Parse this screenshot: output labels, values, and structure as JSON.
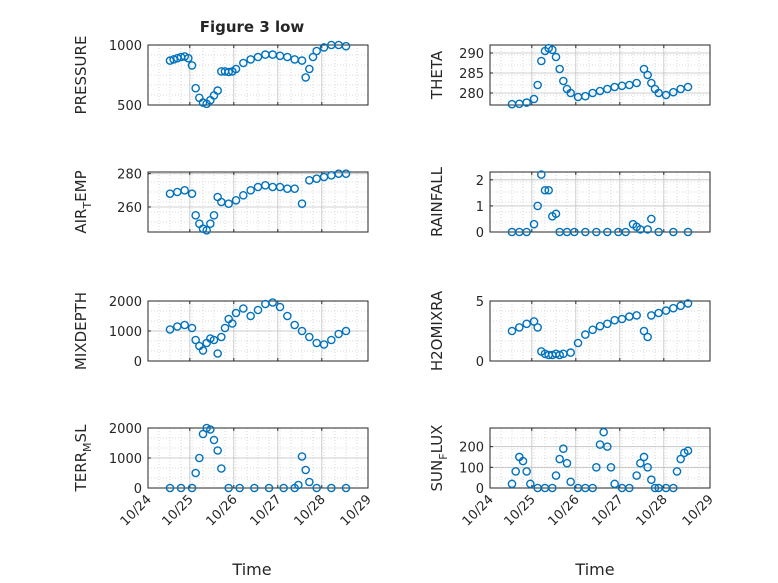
{
  "title": "Figure 3 low",
  "xlabel": "Time",
  "x_ticks": [
    "10/24",
    "10/25",
    "10/26",
    "10/27",
    "10/28",
    "10/29"
  ],
  "marker_color": "#0072BD",
  "chart_data": [
    {
      "type": "scatter",
      "ylabel": "PRESSURE",
      "ylim": [
        500,
        1000
      ],
      "yticks": [
        500,
        1000
      ],
      "x": [
        "10/24 12:00",
        "10/24 14:00",
        "10/24 16:00",
        "10/24 18:00",
        "10/24 20:00",
        "10/24 22:00",
        "10/25 00:00",
        "10/25 02:00",
        "10/25 04:00",
        "10/25 06:00",
        "10/25 08:00",
        "10/25 10:00",
        "10/25 12:00",
        "10/25 14:00",
        "10/25 16:00",
        "10/25 18:00",
        "10/25 20:00",
        "10/25 22:00",
        "10/26 00:00",
        "10/26 04:00",
        "10/26 08:00",
        "10/26 12:00",
        "10/26 16:00",
        "10/26 20:00",
        "10/27 00:00",
        "10/27 04:00",
        "10/27 08:00",
        "10/27 12:00",
        "10/27 14:00",
        "10/27 16:00",
        "10/27 18:00",
        "10/27 20:00",
        "10/28 00:00",
        "10/28 04:00",
        "10/28 08:00",
        "10/28 12:00"
      ],
      "values": [
        870,
        880,
        890,
        900,
        905,
        890,
        830,
        640,
        560,
        520,
        510,
        540,
        580,
        620,
        780,
        780,
        775,
        780,
        800,
        850,
        880,
        900,
        920,
        920,
        910,
        900,
        880,
        870,
        730,
        800,
        900,
        950,
        980,
        1000,
        1000,
        990
      ]
    },
    {
      "type": "scatter",
      "ylabel": "THETA",
      "ylim": [
        277,
        292
      ],
      "yticks": [
        280,
        285,
        290
      ],
      "x": [
        "10/24 12:00",
        "10/24 16:00",
        "10/24 20:00",
        "10/25 00:00",
        "10/25 02:00",
        "10/25 04:00",
        "10/25 06:00",
        "10/25 08:00",
        "10/25 10:00",
        "10/25 12:00",
        "10/25 14:00",
        "10/25 16:00",
        "10/25 18:00",
        "10/25 20:00",
        "10/26 00:00",
        "10/26 04:00",
        "10/26 08:00",
        "10/26 12:00",
        "10/26 16:00",
        "10/26 20:00",
        "10/27 00:00",
        "10/27 04:00",
        "10/27 08:00",
        "10/27 12:00",
        "10/27 14:00",
        "10/27 16:00",
        "10/27 18:00",
        "10/27 20:00",
        "10/28 00:00",
        "10/28 04:00",
        "10/28 08:00",
        "10/28 12:00"
      ],
      "values": [
        277.2,
        277.3,
        277.6,
        278.5,
        282,
        288,
        290.5,
        291.2,
        290.8,
        289,
        286,
        283,
        281,
        280,
        279,
        279.2,
        280,
        280.5,
        281,
        281.5,
        281.8,
        282,
        282.5,
        286,
        284.5,
        282.5,
        281,
        280,
        279.5,
        280.2,
        281,
        281.5
      ]
    },
    {
      "type": "scatter",
      "ylabel": "AIR_TEMP",
      "ylim": [
        245,
        281
      ],
      "yticks": [
        260,
        280
      ],
      "x": [
        "10/24 12:00",
        "10/24 16:00",
        "10/24 20:00",
        "10/25 00:00",
        "10/25 02:00",
        "10/25 04:00",
        "10/25 06:00",
        "10/25 08:00",
        "10/25 10:00",
        "10/25 12:00",
        "10/25 14:00",
        "10/25 16:00",
        "10/25 20:00",
        "10/26 00:00",
        "10/26 04:00",
        "10/26 08:00",
        "10/26 12:00",
        "10/26 16:00",
        "10/26 20:00",
        "10/27 00:00",
        "10/27 04:00",
        "10/27 08:00",
        "10/27 12:00",
        "10/27 16:00",
        "10/27 20:00",
        "10/28 00:00",
        "10/28 04:00",
        "10/28 08:00",
        "10/28 12:00"
      ],
      "values": [
        268,
        269,
        270,
        268,
        255,
        250,
        247,
        246,
        250,
        255,
        266,
        263,
        262,
        264,
        267,
        270,
        272,
        273,
        272,
        272,
        271,
        271,
        262,
        276,
        277,
        278,
        279,
        280,
        280
      ]
    },
    {
      "type": "scatter",
      "ylabel": "RAINFALL",
      "ylim": [
        0,
        2.3
      ],
      "yticks": [
        0,
        1,
        2
      ],
      "x": [
        "10/24 12:00",
        "10/24 16:00",
        "10/24 20:00",
        "10/25 00:00",
        "10/25 02:00",
        "10/25 04:00",
        "10/25 06:00",
        "10/25 08:00",
        "10/25 10:00",
        "10/25 12:00",
        "10/25 14:00",
        "10/25 18:00",
        "10/25 22:00",
        "10/26 04:00",
        "10/26 10:00",
        "10/26 16:00",
        "10/26 22:00",
        "10/27 02:00",
        "10/27 06:00",
        "10/27 08:00",
        "10/27 10:00",
        "10/27 14:00",
        "10/27 16:00",
        "10/27 20:00",
        "10/28 04:00",
        "10/28 12:00"
      ],
      "values": [
        0,
        0,
        0,
        0.3,
        1.0,
        2.2,
        1.6,
        1.6,
        0.6,
        0.7,
        0,
        0,
        0,
        0,
        0,
        0,
        0,
        0,
        0.3,
        0.2,
        0.1,
        0.1,
        0.5,
        0,
        0,
        0
      ]
    },
    {
      "type": "scatter",
      "ylabel": "MIXDEPTH",
      "ylim": [
        0,
        2000
      ],
      "yticks": [
        0,
        1000,
        2000
      ],
      "x": [
        "10/24 12:00",
        "10/24 16:00",
        "10/24 20:00",
        "10/25 00:00",
        "10/25 02:00",
        "10/25 04:00",
        "10/25 06:00",
        "10/25 08:00",
        "10/25 10:00",
        "10/25 12:00",
        "10/25 14:00",
        "10/25 16:00",
        "10/25 18:00",
        "10/25 20:00",
        "10/25 22:00",
        "10/26 00:00",
        "10/26 04:00",
        "10/26 08:00",
        "10/26 12:00",
        "10/26 16:00",
        "10/26 20:00",
        "10/27 00:00",
        "10/27 04:00",
        "10/27 08:00",
        "10/27 12:00",
        "10/27 16:00",
        "10/27 20:00",
        "10/28 00:00",
        "10/28 04:00",
        "10/28 08:00",
        "10/28 12:00"
      ],
      "values": [
        1050,
        1150,
        1200,
        1100,
        700,
        500,
        350,
        600,
        750,
        700,
        250,
        800,
        1100,
        1400,
        1250,
        1600,
        1750,
        1500,
        1700,
        1900,
        1950,
        1800,
        1500,
        1200,
        1000,
        800,
        600,
        550,
        700,
        900,
        1000
      ]
    },
    {
      "type": "scatter",
      "ylabel": "H2OMIXRA",
      "ylim": [
        0,
        5
      ],
      "yticks": [
        0,
        5
      ],
      "x": [
        "10/24 12:00",
        "10/24 16:00",
        "10/24 20:00",
        "10/25 00:00",
        "10/25 02:00",
        "10/25 04:00",
        "10/25 06:00",
        "10/25 08:00",
        "10/25 10:00",
        "10/25 12:00",
        "10/25 14:00",
        "10/25 16:00",
        "10/25 20:00",
        "10/26 00:00",
        "10/26 04:00",
        "10/26 08:00",
        "10/26 12:00",
        "10/26 16:00",
        "10/26 20:00",
        "10/27 00:00",
        "10/27 04:00",
        "10/27 08:00",
        "10/27 12:00",
        "10/27 14:00",
        "10/27 16:00",
        "10/27 20:00",
        "10/28 00:00",
        "10/28 04:00",
        "10/28 08:00",
        "10/28 12:00"
      ],
      "values": [
        2.5,
        2.8,
        3.1,
        3.3,
        2.8,
        0.8,
        0.6,
        0.5,
        0.5,
        0.6,
        0.5,
        0.6,
        0.7,
        1.5,
        2.2,
        2.6,
        2.9,
        3.1,
        3.4,
        3.5,
        3.7,
        3.8,
        2.5,
        2.0,
        3.8,
        4.0,
        4.2,
        4.4,
        4.6,
        4.8
      ]
    },
    {
      "type": "scatter",
      "ylabel": "TERR_MSL",
      "ylim": [
        0,
        2000
      ],
      "yticks": [
        0,
        1000,
        2000
      ],
      "x": [
        "10/24 12:00",
        "10/24 18:00",
        "10/25 00:00",
        "10/25 02:00",
        "10/25 04:00",
        "10/25 06:00",
        "10/25 08:00",
        "10/25 10:00",
        "10/25 12:00",
        "10/25 14:00",
        "10/25 16:00",
        "10/25 20:00",
        "10/26 02:00",
        "10/26 10:00",
        "10/26 18:00",
        "10/27 02:00",
        "10/27 08:00",
        "10/27 10:00",
        "10/27 12:00",
        "10/27 14:00",
        "10/27 16:00",
        "10/27 20:00",
        "10/28 04:00",
        "10/28 12:00"
      ],
      "values": [
        0,
        0,
        0,
        500,
        1000,
        1800,
        2000,
        1950,
        1600,
        1250,
        650,
        0,
        0,
        0,
        0,
        0,
        0,
        100,
        1050,
        600,
        200,
        0,
        0,
        0
      ]
    },
    {
      "type": "scatter",
      "ylabel": "SUN_FLUX",
      "ylim": [
        0,
        290
      ],
      "yticks": [
        0,
        100,
        200
      ],
      "x": [
        "10/24 12:00",
        "10/24 14:00",
        "10/24 16:00",
        "10/24 18:00",
        "10/24 20:00",
        "10/24 22:00",
        "10/25 02:00",
        "10/25 06:00",
        "10/25 10:00",
        "10/25 12:00",
        "10/25 14:00",
        "10/25 16:00",
        "10/25 18:00",
        "10/25 20:00",
        "10/26 00:00",
        "10/26 04:00",
        "10/26 08:00",
        "10/26 10:00",
        "10/26 12:00",
        "10/26 14:00",
        "10/26 16:00",
        "10/26 18:00",
        "10/26 20:00",
        "10/27 00:00",
        "10/27 04:00",
        "10/27 08:00",
        "10/27 10:00",
        "10/27 12:00",
        "10/27 14:00",
        "10/27 16:00",
        "10/27 18:00",
        "10/27 20:00",
        "10/28 00:00",
        "10/28 04:00",
        "10/28 06:00",
        "10/28 08:00",
        "10/28 10:00",
        "10/28 12:00"
      ],
      "values": [
        20,
        80,
        150,
        130,
        80,
        20,
        0,
        0,
        0,
        60,
        140,
        190,
        120,
        30,
        0,
        0,
        0,
        100,
        210,
        270,
        200,
        100,
        20,
        0,
        0,
        60,
        120,
        150,
        100,
        40,
        0,
        0,
        0,
        0,
        80,
        140,
        170,
        180
      ]
    }
  ]
}
